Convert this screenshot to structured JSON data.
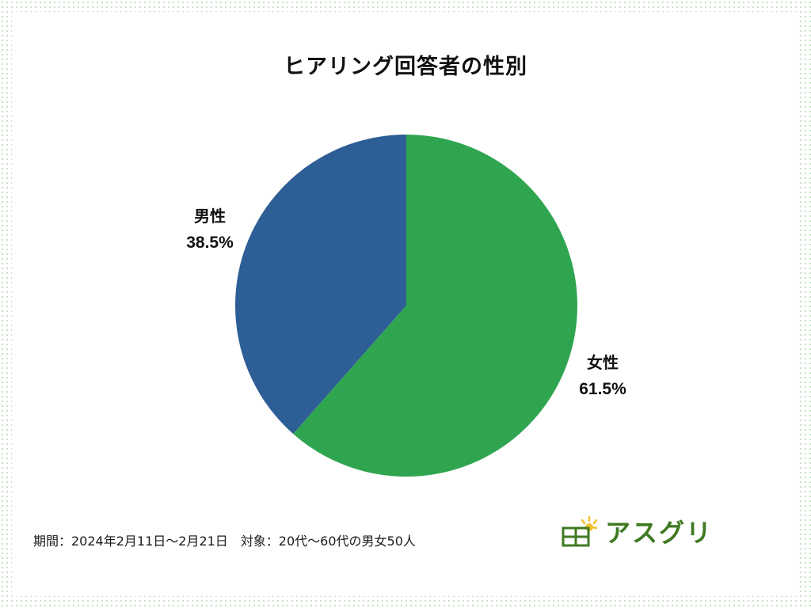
{
  "chart_data": {
    "type": "pie",
    "title": "ヒアリング回答者の性別",
    "slices": [
      {
        "label": "女性",
        "value": 61.5,
        "value_label": "61.5%",
        "color": "#2fa550"
      },
      {
        "label": "男性",
        "value": 38.5,
        "value_label": "38.5%",
        "color": "#2e5e96"
      }
    ],
    "start": "12 o'clock",
    "direction": "clockwise",
    "legend": "none"
  },
  "footer": {
    "note": "期間：2024年2月11日〜2月21日　対象：20代〜60代の男女50人"
  },
  "logo": {
    "text": "アスグリ",
    "icon": "sun-grid-icon",
    "color": "#3f7a23",
    "accent_color": "#f2c230"
  },
  "colors": {
    "background_dots": "#c6dfc3",
    "card": "#ffffff"
  }
}
